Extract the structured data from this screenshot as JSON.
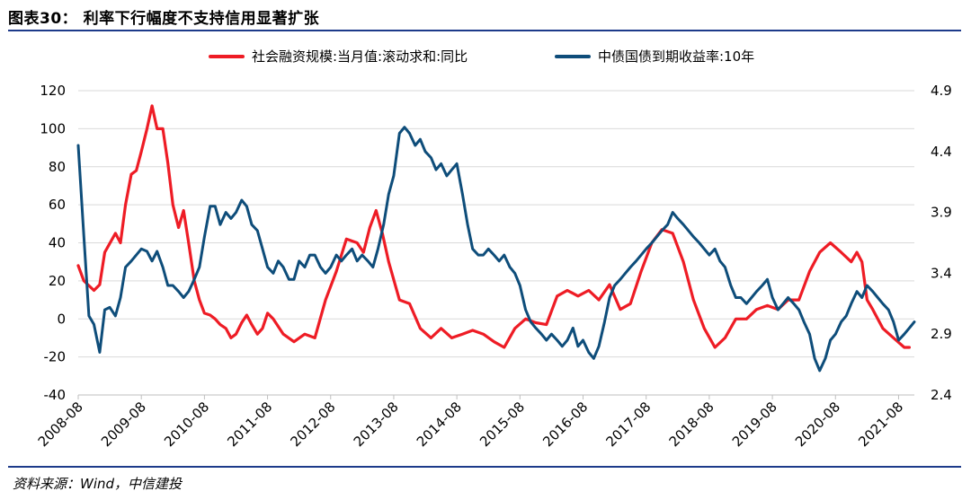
{
  "figure": {
    "title": "图表30：  利率下行幅度不支持信用显著扩张",
    "source": "资料来源：Wind，中信建投"
  },
  "colors": {
    "series_red": "#ee1c25",
    "series_blue": "#0e4d7a",
    "rule": "#1d3a8a",
    "grid": "#d9d9d9"
  },
  "chart_data": {
    "type": "line",
    "title": "利率下行幅度不支持信用显著扩张",
    "legend_position": "top-center",
    "grid": true,
    "x_tick_labels": [
      "2008-08",
      "2009-08",
      "2010-08",
      "2011-08",
      "2012-08",
      "2013-08",
      "2014-08",
      "2015-08",
      "2016-08",
      "2017-08",
      "2018-08",
      "2019-08",
      "2020-08",
      "2021-08"
    ],
    "x_range": [
      2008.58,
      2021.83
    ],
    "left_axis": {
      "range": [
        -40,
        120
      ],
      "ticks": [
        -40,
        -20,
        0,
        20,
        40,
        60,
        80,
        100,
        120
      ]
    },
    "right_axis": {
      "range": [
        2.4,
        4.9
      ],
      "ticks": [
        2.4,
        2.9,
        3.4,
        3.9,
        4.4,
        4.9
      ]
    },
    "series": [
      {
        "name": "社会融资规模:当月值:滚动求和:同比",
        "axis": "left",
        "color": "#ee1c25",
        "x": [
          2008.58,
          2008.67,
          2008.83,
          2008.92,
          2009.0,
          2009.17,
          2009.25,
          2009.33,
          2009.42,
          2009.5,
          2009.58,
          2009.67,
          2009.75,
          2009.83,
          2009.92,
          2010.0,
          2010.08,
          2010.17,
          2010.25,
          2010.33,
          2010.42,
          2010.5,
          2010.58,
          2010.67,
          2010.75,
          2010.83,
          2010.92,
          2011.0,
          2011.08,
          2011.17,
          2011.25,
          2011.33,
          2011.42,
          2011.5,
          2011.58,
          2011.67,
          2011.83,
          2012.0,
          2012.17,
          2012.33,
          2012.5,
          2012.67,
          2012.83,
          2013.0,
          2013.1,
          2013.2,
          2013.3,
          2013.4,
          2013.5,
          2013.67,
          2013.83,
          2014.0,
          2014.17,
          2014.33,
          2014.5,
          2014.67,
          2014.83,
          2015.0,
          2015.17,
          2015.33,
          2015.5,
          2015.67,
          2015.83,
          2016.0,
          2016.17,
          2016.33,
          2016.5,
          2016.67,
          2016.83,
          2017.0,
          2017.17,
          2017.33,
          2017.5,
          2017.67,
          2017.83,
          2018.0,
          2018.17,
          2018.33,
          2018.5,
          2018.67,
          2018.83,
          2019.0,
          2019.17,
          2019.33,
          2019.5,
          2019.67,
          2019.83,
          2020.0,
          2020.17,
          2020.33,
          2020.5,
          2020.67,
          2020.83,
          2020.92,
          2021.0,
          2021.08,
          2021.17,
          2021.33,
          2021.5,
          2021.67,
          2021.75
        ],
        "y": [
          28,
          20,
          15,
          18,
          35,
          45,
          40,
          60,
          76,
          78,
          88,
          100,
          112,
          100,
          100,
          82,
          60,
          48,
          57,
          40,
          20,
          10,
          3,
          2,
          0,
          -3,
          -5,
          -10,
          -8,
          -2,
          2,
          -3,
          -8,
          -5,
          3,
          0,
          -8,
          -12,
          -8,
          -10,
          10,
          25,
          42,
          40,
          35,
          48,
          57,
          45,
          30,
          10,
          8,
          -5,
          -10,
          -5,
          -10,
          -8,
          -6,
          -8,
          -12,
          -15,
          -5,
          0,
          -2,
          -3,
          12,
          15,
          12,
          15,
          10,
          18,
          5,
          8,
          25,
          40,
          47,
          45,
          30,
          10,
          -5,
          -15,
          -10,
          0,
          0,
          5,
          7,
          5,
          10,
          10,
          25,
          35,
          40,
          35,
          30,
          35,
          30,
          10,
          5,
          -5,
          -10,
          -15,
          -15
        ]
      },
      {
        "name": "中债国债到期收益率:10年",
        "axis": "right",
        "color": "#0e4d7a",
        "x": [
          2008.58,
          2008.67,
          2008.75,
          2008.83,
          2008.92,
          2009.0,
          2009.08,
          2009.17,
          2009.25,
          2009.33,
          2009.42,
          2009.5,
          2009.58,
          2009.67,
          2009.75,
          2009.83,
          2009.92,
          2010.0,
          2010.08,
          2010.17,
          2010.25,
          2010.33,
          2010.42,
          2010.5,
          2010.58,
          2010.67,
          2010.75,
          2010.83,
          2010.92,
          2011.0,
          2011.08,
          2011.17,
          2011.25,
          2011.33,
          2011.42,
          2011.5,
          2011.58,
          2011.67,
          2011.75,
          2011.83,
          2011.92,
          2012.0,
          2012.08,
          2012.17,
          2012.25,
          2012.33,
          2012.42,
          2012.5,
          2012.58,
          2012.67,
          2012.75,
          2012.83,
          2012.92,
          2013.0,
          2013.08,
          2013.17,
          2013.25,
          2013.33,
          2013.42,
          2013.5,
          2013.58,
          2013.67,
          2013.75,
          2013.83,
          2013.92,
          2014.0,
          2014.08,
          2014.17,
          2014.25,
          2014.33,
          2014.42,
          2014.5,
          2014.58,
          2014.67,
          2014.75,
          2014.83,
          2014.92,
          2015.0,
          2015.08,
          2015.17,
          2015.25,
          2015.33,
          2015.42,
          2015.5,
          2015.58,
          2015.67,
          2015.75,
          2015.83,
          2015.92,
          2016.0,
          2016.08,
          2016.17,
          2016.25,
          2016.33,
          2016.42,
          2016.5,
          2016.58,
          2016.67,
          2016.75,
          2016.83,
          2016.92,
          2017.0,
          2017.08,
          2017.17,
          2017.25,
          2017.33,
          2017.42,
          2017.5,
          2017.58,
          2017.67,
          2017.75,
          2017.83,
          2017.92,
          2018.0,
          2018.08,
          2018.17,
          2018.25,
          2018.33,
          2018.42,
          2018.5,
          2018.58,
          2018.67,
          2018.75,
          2018.83,
          2018.92,
          2019.0,
          2019.08,
          2019.17,
          2019.25,
          2019.33,
          2019.42,
          2019.5,
          2019.58,
          2019.67,
          2019.75,
          2019.83,
          2019.92,
          2020.0,
          2020.08,
          2020.17,
          2020.25,
          2020.33,
          2020.42,
          2020.5,
          2020.58,
          2020.67,
          2020.75,
          2020.83,
          2020.92,
          2021.0,
          2021.08,
          2021.17,
          2021.25,
          2021.33,
          2021.42,
          2021.5,
          2021.58,
          2021.67,
          2021.75,
          2021.83
        ],
        "y": [
          4.45,
          3.7,
          3.05,
          2.98,
          2.75,
          3.1,
          3.12,
          3.05,
          3.2,
          3.45,
          3.5,
          3.55,
          3.6,
          3.58,
          3.5,
          3.58,
          3.45,
          3.3,
          3.3,
          3.25,
          3.2,
          3.25,
          3.35,
          3.45,
          3.7,
          3.95,
          3.95,
          3.8,
          3.9,
          3.85,
          3.9,
          4.0,
          3.95,
          3.8,
          3.75,
          3.6,
          3.45,
          3.4,
          3.5,
          3.45,
          3.35,
          3.35,
          3.5,
          3.45,
          3.55,
          3.55,
          3.45,
          3.4,
          3.45,
          3.55,
          3.5,
          3.55,
          3.6,
          3.5,
          3.55,
          3.5,
          3.45,
          3.6,
          3.8,
          4.05,
          4.2,
          4.55,
          4.6,
          4.55,
          4.45,
          4.5,
          4.4,
          4.35,
          4.25,
          4.3,
          4.2,
          4.25,
          4.3,
          4.05,
          3.8,
          3.6,
          3.55,
          3.55,
          3.6,
          3.55,
          3.5,
          3.55,
          3.45,
          3.4,
          3.3,
          3.1,
          3.0,
          2.95,
          2.9,
          2.85,
          2.9,
          2.85,
          2.8,
          2.85,
          2.95,
          2.8,
          2.85,
          2.75,
          2.7,
          2.8,
          3.0,
          3.2,
          3.3,
          3.35,
          3.4,
          3.45,
          3.5,
          3.55,
          3.6,
          3.65,
          3.7,
          3.75,
          3.8,
          3.9,
          3.85,
          3.8,
          3.75,
          3.7,
          3.65,
          3.6,
          3.55,
          3.6,
          3.5,
          3.45,
          3.3,
          3.2,
          3.2,
          3.15,
          3.2,
          3.25,
          3.3,
          3.35,
          3.2,
          3.1,
          3.15,
          3.2,
          3.15,
          3.1,
          3.0,
          2.9,
          2.7,
          2.6,
          2.7,
          2.85,
          2.9,
          3.0,
          3.05,
          3.15,
          3.25,
          3.2,
          3.3,
          3.25,
          3.2,
          3.15,
          3.1,
          3.0,
          2.85,
          2.9,
          2.95,
          3.0
        ]
      }
    ]
  }
}
